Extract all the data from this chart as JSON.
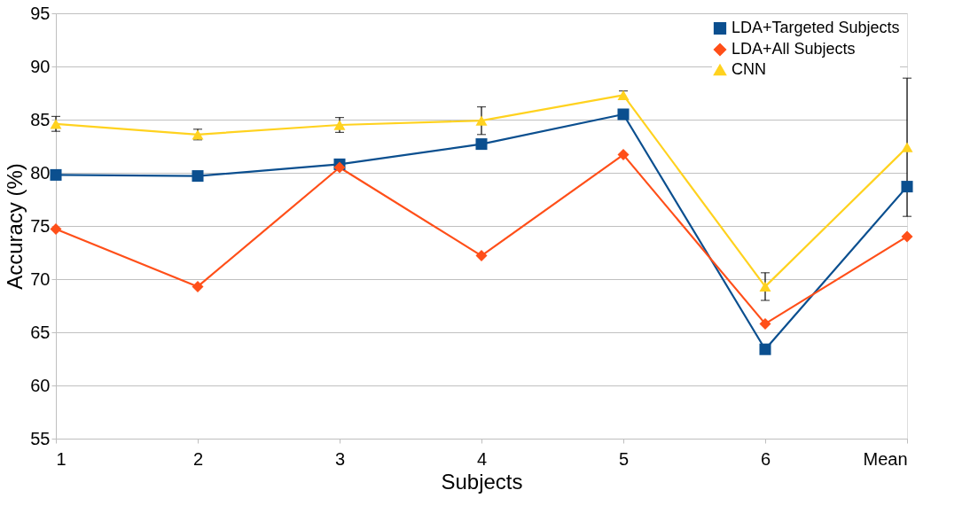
{
  "chart_data": {
    "type": "line",
    "xlabel": "Subjects",
    "ylabel": "Accuracy (%)",
    "categories": [
      "1",
      "2",
      "3",
      "4",
      "5",
      "6",
      "Mean"
    ],
    "series": [
      {
        "name": "LDA+Targeted Subjects",
        "color": "#0b4f8f",
        "marker": "square",
        "values": [
          79.8,
          79.7,
          80.8,
          82.7,
          85.5,
          63.4,
          78.7
        ]
      },
      {
        "name": "LDA+All Subjects",
        "color": "#ff4f19",
        "marker": "diamond",
        "values": [
          74.7,
          69.3,
          80.5,
          72.2,
          81.7,
          65.8,
          74.0
        ]
      },
      {
        "name": "CNN",
        "color": "#ffd21f",
        "marker": "triangle",
        "values": [
          84.6,
          83.6,
          84.5,
          84.9,
          87.3,
          69.3,
          82.4
        ],
        "errors": [
          0.7,
          0.5,
          0.7,
          1.3,
          0.4,
          1.3,
          6.5
        ]
      }
    ],
    "ylim": [
      55,
      95
    ],
    "yticks": [
      55,
      60,
      65,
      70,
      75,
      80,
      85,
      90,
      95
    ],
    "grid": "y",
    "legend": "top right",
    "line_style": "solid"
  }
}
